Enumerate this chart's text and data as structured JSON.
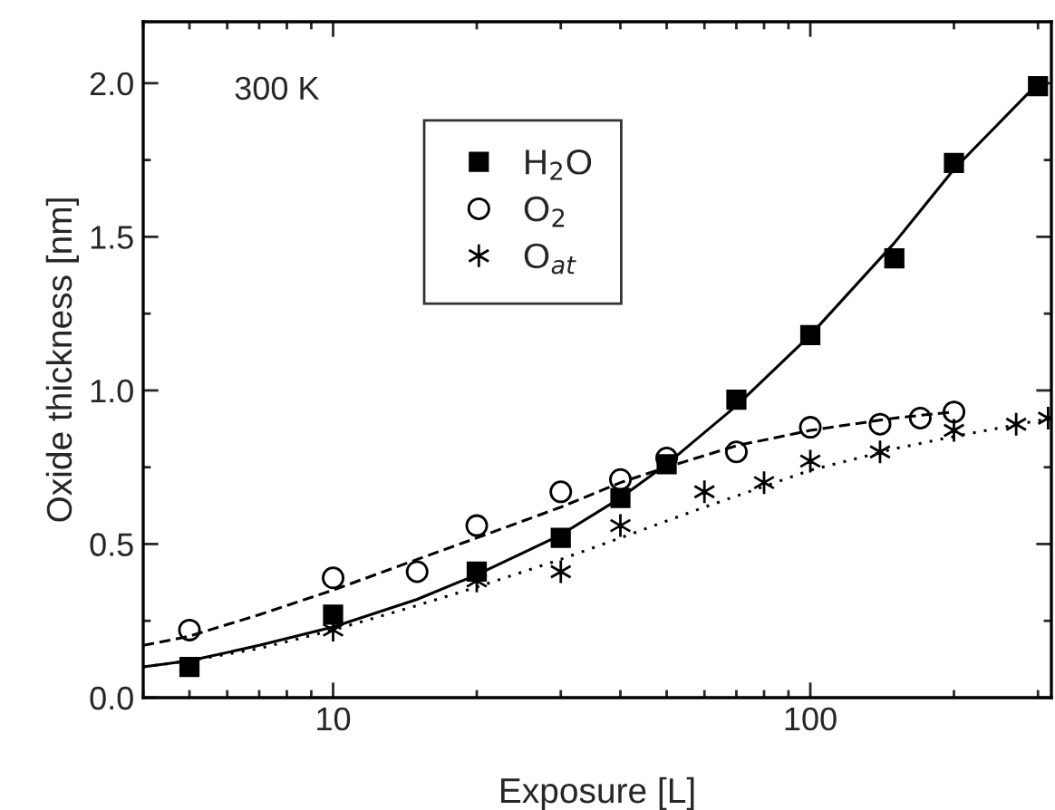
{
  "chart_data": {
    "type": "scatter",
    "xlabel": "Exposure [L]",
    "ylabel": "Oxide thickness [nm]",
    "annotations": [
      "300 K"
    ],
    "log": "x",
    "xlim": [
      4,
      320
    ],
    "xticks": [
      10,
      100
    ],
    "ylim": [
      0,
      2.2
    ],
    "yticks": [
      {
        "value": 0,
        "label": "0.0"
      },
      {
        "value": 0.5,
        "label": "0.5"
      },
      {
        "value": 1.0,
        "label": "1.0"
      },
      {
        "value": 1.5,
        "label": "1.5"
      },
      {
        "value": 2.0,
        "label": "2.0"
      }
    ],
    "grid": false,
    "legend": "top",
    "series": [
      {
        "name": "H$_{2}$O",
        "marker": "square",
        "color": "#000000",
        "x": [
          5,
          10,
          20,
          30,
          40,
          50,
          70,
          100,
          150,
          200,
          300
        ],
        "values": [
          0.1,
          0.27,
          0.41,
          0.52,
          0.65,
          0.76,
          0.97,
          1.18,
          1.43,
          1.74,
          1.99
        ]
      },
      {
        "name": "O$_{2}$",
        "marker": "circle",
        "color": "#000000",
        "x": [
          5,
          10,
          15,
          20,
          30,
          40,
          50,
          70,
          100,
          140,
          170,
          200
        ],
        "values": [
          0.22,
          0.39,
          0.41,
          0.56,
          0.67,
          0.71,
          0.78,
          0.8,
          0.88,
          0.89,
          0.91,
          0.93
        ]
      },
      {
        "name": "O$_{at}$",
        "marker": "cross",
        "color": "#000000",
        "x": [
          10,
          20,
          30,
          40,
          60,
          80,
          100,
          140,
          200,
          270,
          315
        ],
        "values": [
          0.22,
          0.38,
          0.41,
          0.56,
          0.67,
          0.7,
          0.77,
          0.8,
          0.87,
          0.89,
          0.91
        ]
      },
      {
        "type": "line",
        "line_style": "solid",
        "color": "#000000",
        "x": [
          4,
          5,
          7,
          10,
          15,
          20,
          30,
          40,
          50,
          70,
          100,
          150,
          200,
          300
        ],
        "values": [
          0.1,
          0.12,
          0.17,
          0.23,
          0.32,
          0.4,
          0.53,
          0.65,
          0.76,
          0.95,
          1.18,
          1.48,
          1.72,
          2.0
        ]
      },
      {
        "type": "line",
        "line_style": "dashed",
        "color": "#000000",
        "x": [
          4,
          5,
          7,
          10,
          15,
          20,
          30,
          40,
          50,
          70,
          100,
          150,
          200
        ],
        "values": [
          0.17,
          0.2,
          0.27,
          0.35,
          0.45,
          0.52,
          0.62,
          0.7,
          0.75,
          0.82,
          0.87,
          0.91,
          0.93
        ]
      },
      {
        "type": "line",
        "line_style": "dotted",
        "color": "#000000",
        "x": [
          4,
          5,
          7,
          10,
          15,
          20,
          30,
          40,
          60,
          100,
          150,
          200,
          320
        ],
        "values": [
          0.1,
          0.12,
          0.16,
          0.22,
          0.3,
          0.36,
          0.45,
          0.52,
          0.62,
          0.74,
          0.81,
          0.85,
          0.91
        ]
      }
    ]
  }
}
